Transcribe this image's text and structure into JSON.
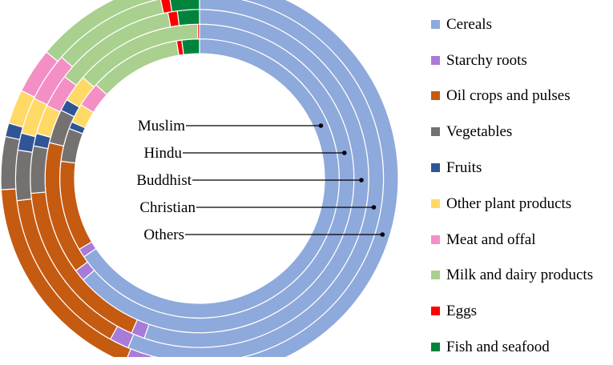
{
  "chart_data": {
    "type": "donut",
    "title": "",
    "legend_position": "right",
    "categories": [
      "Cereals",
      "Starchy roots",
      "Oil crops and pulses",
      "Vegetables",
      "Fruits",
      "Other plant products",
      "Meat and offal",
      "Milk and dairy products",
      "Eggs",
      "Fish and seafood"
    ],
    "colors": [
      "#8EA9DB",
      "#A97BD8",
      "#C55A11",
      "#767171",
      "#2F5597",
      "#FFD966",
      "#F48FC6",
      "#A9D08E",
      "#FF0000",
      "#00843D"
    ],
    "series": [
      {
        "name": "Muslim",
        "values": [
          64.6,
          1.0,
          10.3,
          3.8,
          0.8,
          2.2,
          2.8,
          10.5,
          0.6,
          2.0
        ]
      },
      {
        "name": "Hindu",
        "values": [
          62.5,
          1.2,
          13.7,
          3.5,
          1.2,
          2.8,
          0.0,
          13.2,
          0.2,
          0.0
        ]
      },
      {
        "name": "Buddhist",
        "values": [
          55.3,
          1.3,
          17.0,
          4.5,
          1.2,
          2.8,
          3.2,
          11.7,
          0.9,
          2.1
        ]
      },
      {
        "name": "Christian",
        "values": [
          56.3,
          1.7,
          15.0,
          4.4,
          1.5,
          3.2,
          4.3,
          10.1,
          0.8,
          2.6
        ]
      },
      {
        "name": "Others",
        "values": [
          54.2,
          1.9,
          18.0,
          4.3,
          1.1,
          2.8,
          3.7,
          10.2,
          0.8,
          3.0
        ]
      }
    ]
  }
}
